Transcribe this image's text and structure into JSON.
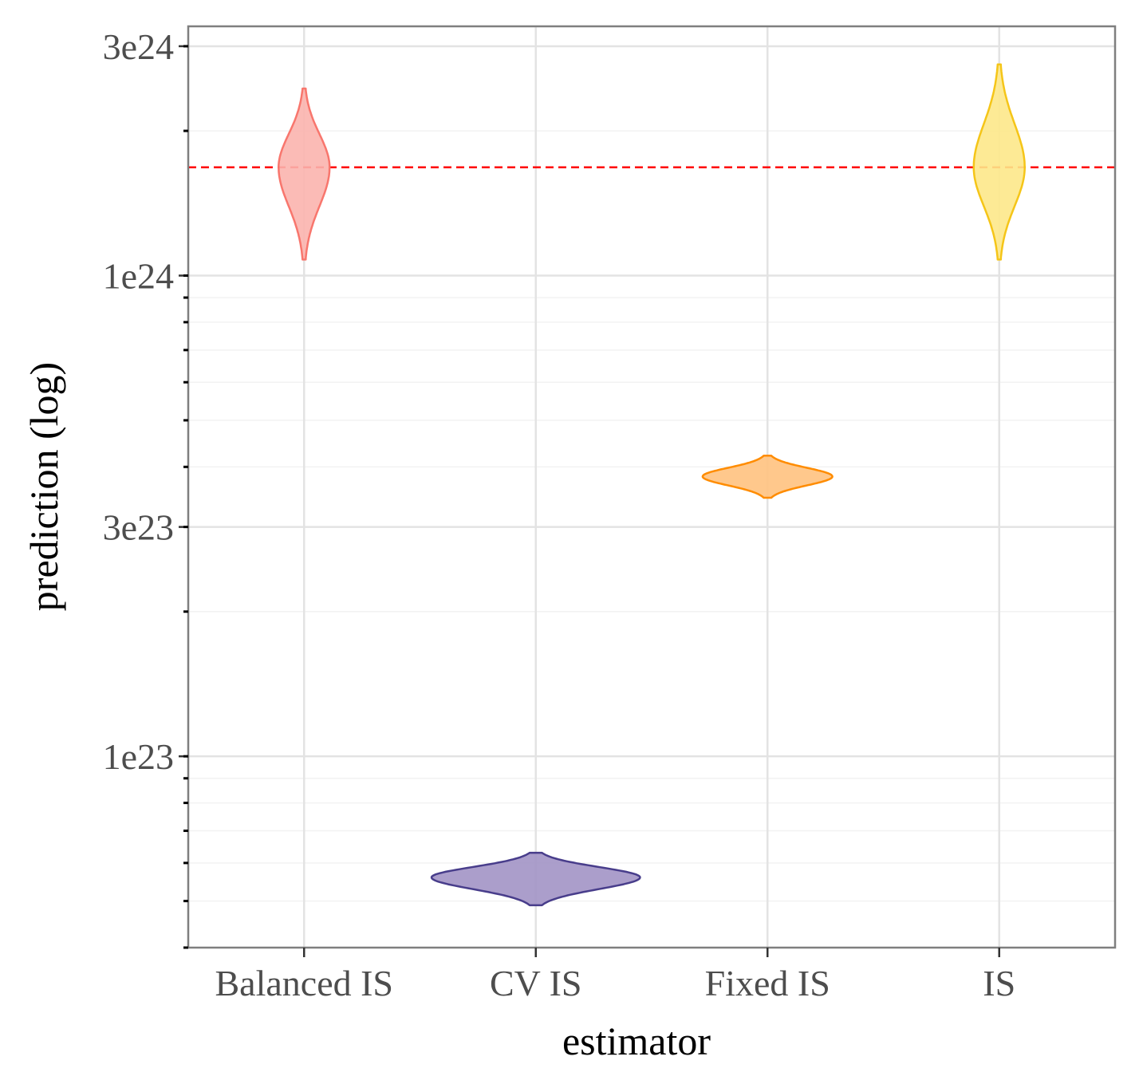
{
  "chart_data": {
    "type": "violin",
    "title": "",
    "xlabel": "estimator",
    "ylabel": "prediction (log)",
    "y_scale": "log10",
    "ylim": [
      4e+22,
      3.3e+24
    ],
    "y_ticks": [
      {
        "value": 3e+24,
        "label": "3e24"
      },
      {
        "value": 1e+24,
        "label": "1e24"
      },
      {
        "value": 3e+23,
        "label": "3e23"
      },
      {
        "value": 1e+23,
        "label": "1e23"
      }
    ],
    "categories": [
      "Balanced IS",
      "CV IS",
      "Fixed IS",
      "IS"
    ],
    "reference_line": {
      "value": 1.68e+24,
      "style": "dashed",
      "color": "#ff0000"
    },
    "series": [
      {
        "name": "Balanced IS",
        "color": "#f8766d",
        "fill": "#fbb4ae",
        "min": 1.08e+24,
        "median": 1.68e+24,
        "max": 2.45e+24,
        "max_density_width": 0.22
      },
      {
        "name": "CV IS",
        "color": "#483d8b",
        "fill": "#a294c5",
        "min": 4.9e+22,
        "median": 5.6e+22,
        "max": 6.3e+22,
        "max_density_width": 0.9
      },
      {
        "name": "Fixed IS",
        "color": "#ff8c00",
        "fill": "#ffc27f",
        "min": 3.45e+23,
        "median": 3.82e+23,
        "max": 4.22e+23,
        "max_density_width": 0.56
      },
      {
        "name": "IS",
        "color": "#f5c518",
        "fill": "#fde88a",
        "min": 1.08e+24,
        "median": 1.68e+24,
        "max": 2.75e+24,
        "max_density_width": 0.22
      }
    ]
  }
}
